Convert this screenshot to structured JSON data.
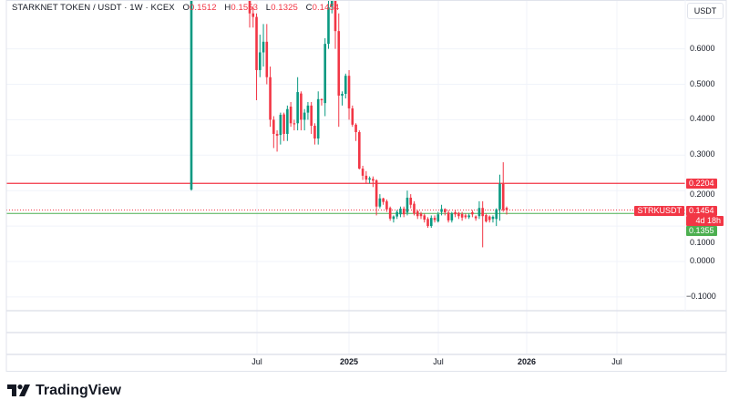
{
  "header": {
    "symbol_title": "STARKNET TOKEN / USDT · 1W · KCEX",
    "open_label": "O",
    "open": "0.1512",
    "high_label": "H",
    "high": "0.1553",
    "low_label": "L",
    "low": "0.1325",
    "close_label": "C",
    "close": "0.1454"
  },
  "currency_button": "USDT",
  "price_axis": [
    "0.6000",
    "0.5000",
    "0.4000",
    "0.3000",
    "0.2000",
    "0.1000",
    "0.0000",
    "−0.1000"
  ],
  "price_tags": {
    "alert_line": "0.2204",
    "symbol": "STRKUSDT",
    "last_price": "0.1454",
    "countdown": "4d 18h",
    "low_line": "0.1355"
  },
  "time_axis": [
    {
      "label": "Jul",
      "bold": false
    },
    {
      "label": "2025",
      "bold": true
    },
    {
      "label": "Jul",
      "bold": false
    },
    {
      "label": "2026",
      "bold": true
    },
    {
      "label": "Jul",
      "bold": false
    }
  ],
  "brand": "TradingView",
  "colors": {
    "up": "#089981",
    "down": "#f23645",
    "alert_line": "#f23645",
    "low_line": "#4caf50"
  },
  "chart_data": {
    "type": "candlestick",
    "interval": "1W",
    "ylim": [
      -0.13,
      0.74
    ],
    "levels": {
      "alert": 0.2204,
      "last": 0.1454,
      "low": 0.1355
    },
    "first_candle": {
      "o": 0.203,
      "h": 1.2,
      "l": 0.2,
      "c": 1.1
    },
    "ohlc": [
      [
        0.74,
        0.76,
        0.66,
        0.7
      ],
      [
        0.7,
        0.72,
        0.66,
        0.69
      ],
      [
        0.69,
        0.7,
        0.455,
        0.54
      ],
      [
        0.54,
        0.64,
        0.52,
        0.59
      ],
      [
        0.59,
        0.67,
        0.55,
        0.62
      ],
      [
        0.62,
        0.67,
        0.5,
        0.52
      ],
      [
        0.52,
        0.55,
        0.38,
        0.4
      ],
      [
        0.4,
        0.41,
        0.32,
        0.36
      ],
      [
        0.36,
        0.37,
        0.31,
        0.355
      ],
      [
        0.357,
        0.42,
        0.33,
        0.414
      ],
      [
        0.415,
        0.42,
        0.34,
        0.36
      ],
      [
        0.36,
        0.44,
        0.34,
        0.43
      ],
      [
        0.437,
        0.45,
        0.38,
        0.39
      ],
      [
        0.39,
        0.4,
        0.37,
        0.387
      ],
      [
        0.39,
        0.52,
        0.37,
        0.478
      ],
      [
        0.474,
        0.48,
        0.37,
        0.4
      ],
      [
        0.4,
        0.43,
        0.37,
        0.42
      ],
      [
        0.42,
        0.45,
        0.4,
        0.44
      ],
      [
        0.44,
        0.45,
        0.36,
        0.383
      ],
      [
        0.383,
        0.39,
        0.33,
        0.347
      ],
      [
        0.347,
        0.48,
        0.33,
        0.458
      ],
      [
        0.458,
        0.46,
        0.44,
        0.455
      ],
      [
        0.447,
        0.63,
        0.41,
        0.614
      ],
      [
        0.614,
        0.76,
        0.6,
        0.717
      ],
      [
        0.72,
        0.95,
        0.7,
        0.85
      ],
      [
        0.85,
        0.9,
        0.6,
        0.65
      ],
      [
        0.65,
        0.7,
        0.38,
        0.468
      ],
      [
        0.468,
        0.48,
        0.44,
        0.473
      ],
      [
        0.473,
        0.53,
        0.46,
        0.524
      ],
      [
        0.524,
        0.54,
        0.4,
        0.432
      ],
      [
        0.432,
        0.44,
        0.38,
        0.386
      ],
      [
        0.386,
        0.39,
        0.34,
        0.365
      ],
      [
        0.365,
        0.37,
        0.26,
        0.262
      ],
      [
        0.262,
        0.27,
        0.23,
        0.242
      ],
      [
        0.242,
        0.255,
        0.22,
        0.231
      ],
      [
        0.231,
        0.24,
        0.22,
        0.235
      ],
      [
        0.233,
        0.24,
        0.21,
        0.228
      ],
      [
        0.229,
        0.232,
        0.13,
        0.155
      ],
      [
        0.155,
        0.19,
        0.15,
        0.178
      ],
      [
        0.178,
        0.18,
        0.16,
        0.168
      ],
      [
        0.17,
        0.175,
        0.14,
        0.147
      ],
      [
        0.151,
        0.155,
        0.115,
        0.121
      ],
      [
        0.12,
        0.13,
        0.11,
        0.127
      ],
      [
        0.127,
        0.145,
        0.12,
        0.14
      ],
      [
        0.133,
        0.155,
        0.125,
        0.149
      ],
      [
        0.149,
        0.155,
        0.125,
        0.133
      ],
      [
        0.138,
        0.2,
        0.13,
        0.18
      ],
      [
        0.18,
        0.19,
        0.15,
        0.16
      ],
      [
        0.163,
        0.17,
        0.13,
        0.135
      ],
      [
        0.142,
        0.145,
        0.12,
        0.128
      ],
      [
        0.135,
        0.14,
        0.12,
        0.128
      ],
      [
        0.13,
        0.135,
        0.11,
        0.118
      ],
      [
        0.12,
        0.125,
        0.095,
        0.1
      ],
      [
        0.1,
        0.13,
        0.095,
        0.123
      ],
      [
        0.123,
        0.13,
        0.11,
        0.117
      ],
      [
        0.113,
        0.14,
        0.11,
        0.133
      ],
      [
        0.14,
        0.16,
        0.13,
        0.148
      ],
      [
        0.148,
        0.15,
        0.13,
        0.139
      ],
      [
        0.138,
        0.145,
        0.11,
        0.116
      ],
      [
        0.116,
        0.14,
        0.11,
        0.135
      ],
      [
        0.139,
        0.145,
        0.125,
        0.133
      ],
      [
        0.137,
        0.14,
        0.12,
        0.128
      ],
      [
        0.134,
        0.14,
        0.115,
        0.124
      ],
      [
        0.13,
        0.135,
        0.12,
        0.125
      ],
      [
        0.125,
        0.135,
        0.12,
        0.13
      ],
      [
        0.139,
        0.145,
        0.125,
        0.133
      ],
      [
        0.127,
        0.13,
        0.115,
        0.122
      ],
      [
        0.128,
        0.17,
        0.12,
        0.151
      ],
      [
        0.151,
        0.17,
        0.04,
        0.128
      ],
      [
        0.131,
        0.135,
        0.11,
        0.113
      ],
      [
        0.127,
        0.13,
        0.11,
        0.117
      ],
      [
        0.12,
        0.13,
        0.11,
        0.126
      ],
      [
        0.12,
        0.15,
        0.1,
        0.147
      ],
      [
        0.147,
        0.245,
        0.115,
        0.219
      ],
      [
        0.219,
        0.28,
        0.14,
        0.145
      ],
      [
        0.1512,
        0.1553,
        0.1325,
        0.1454
      ]
    ]
  }
}
